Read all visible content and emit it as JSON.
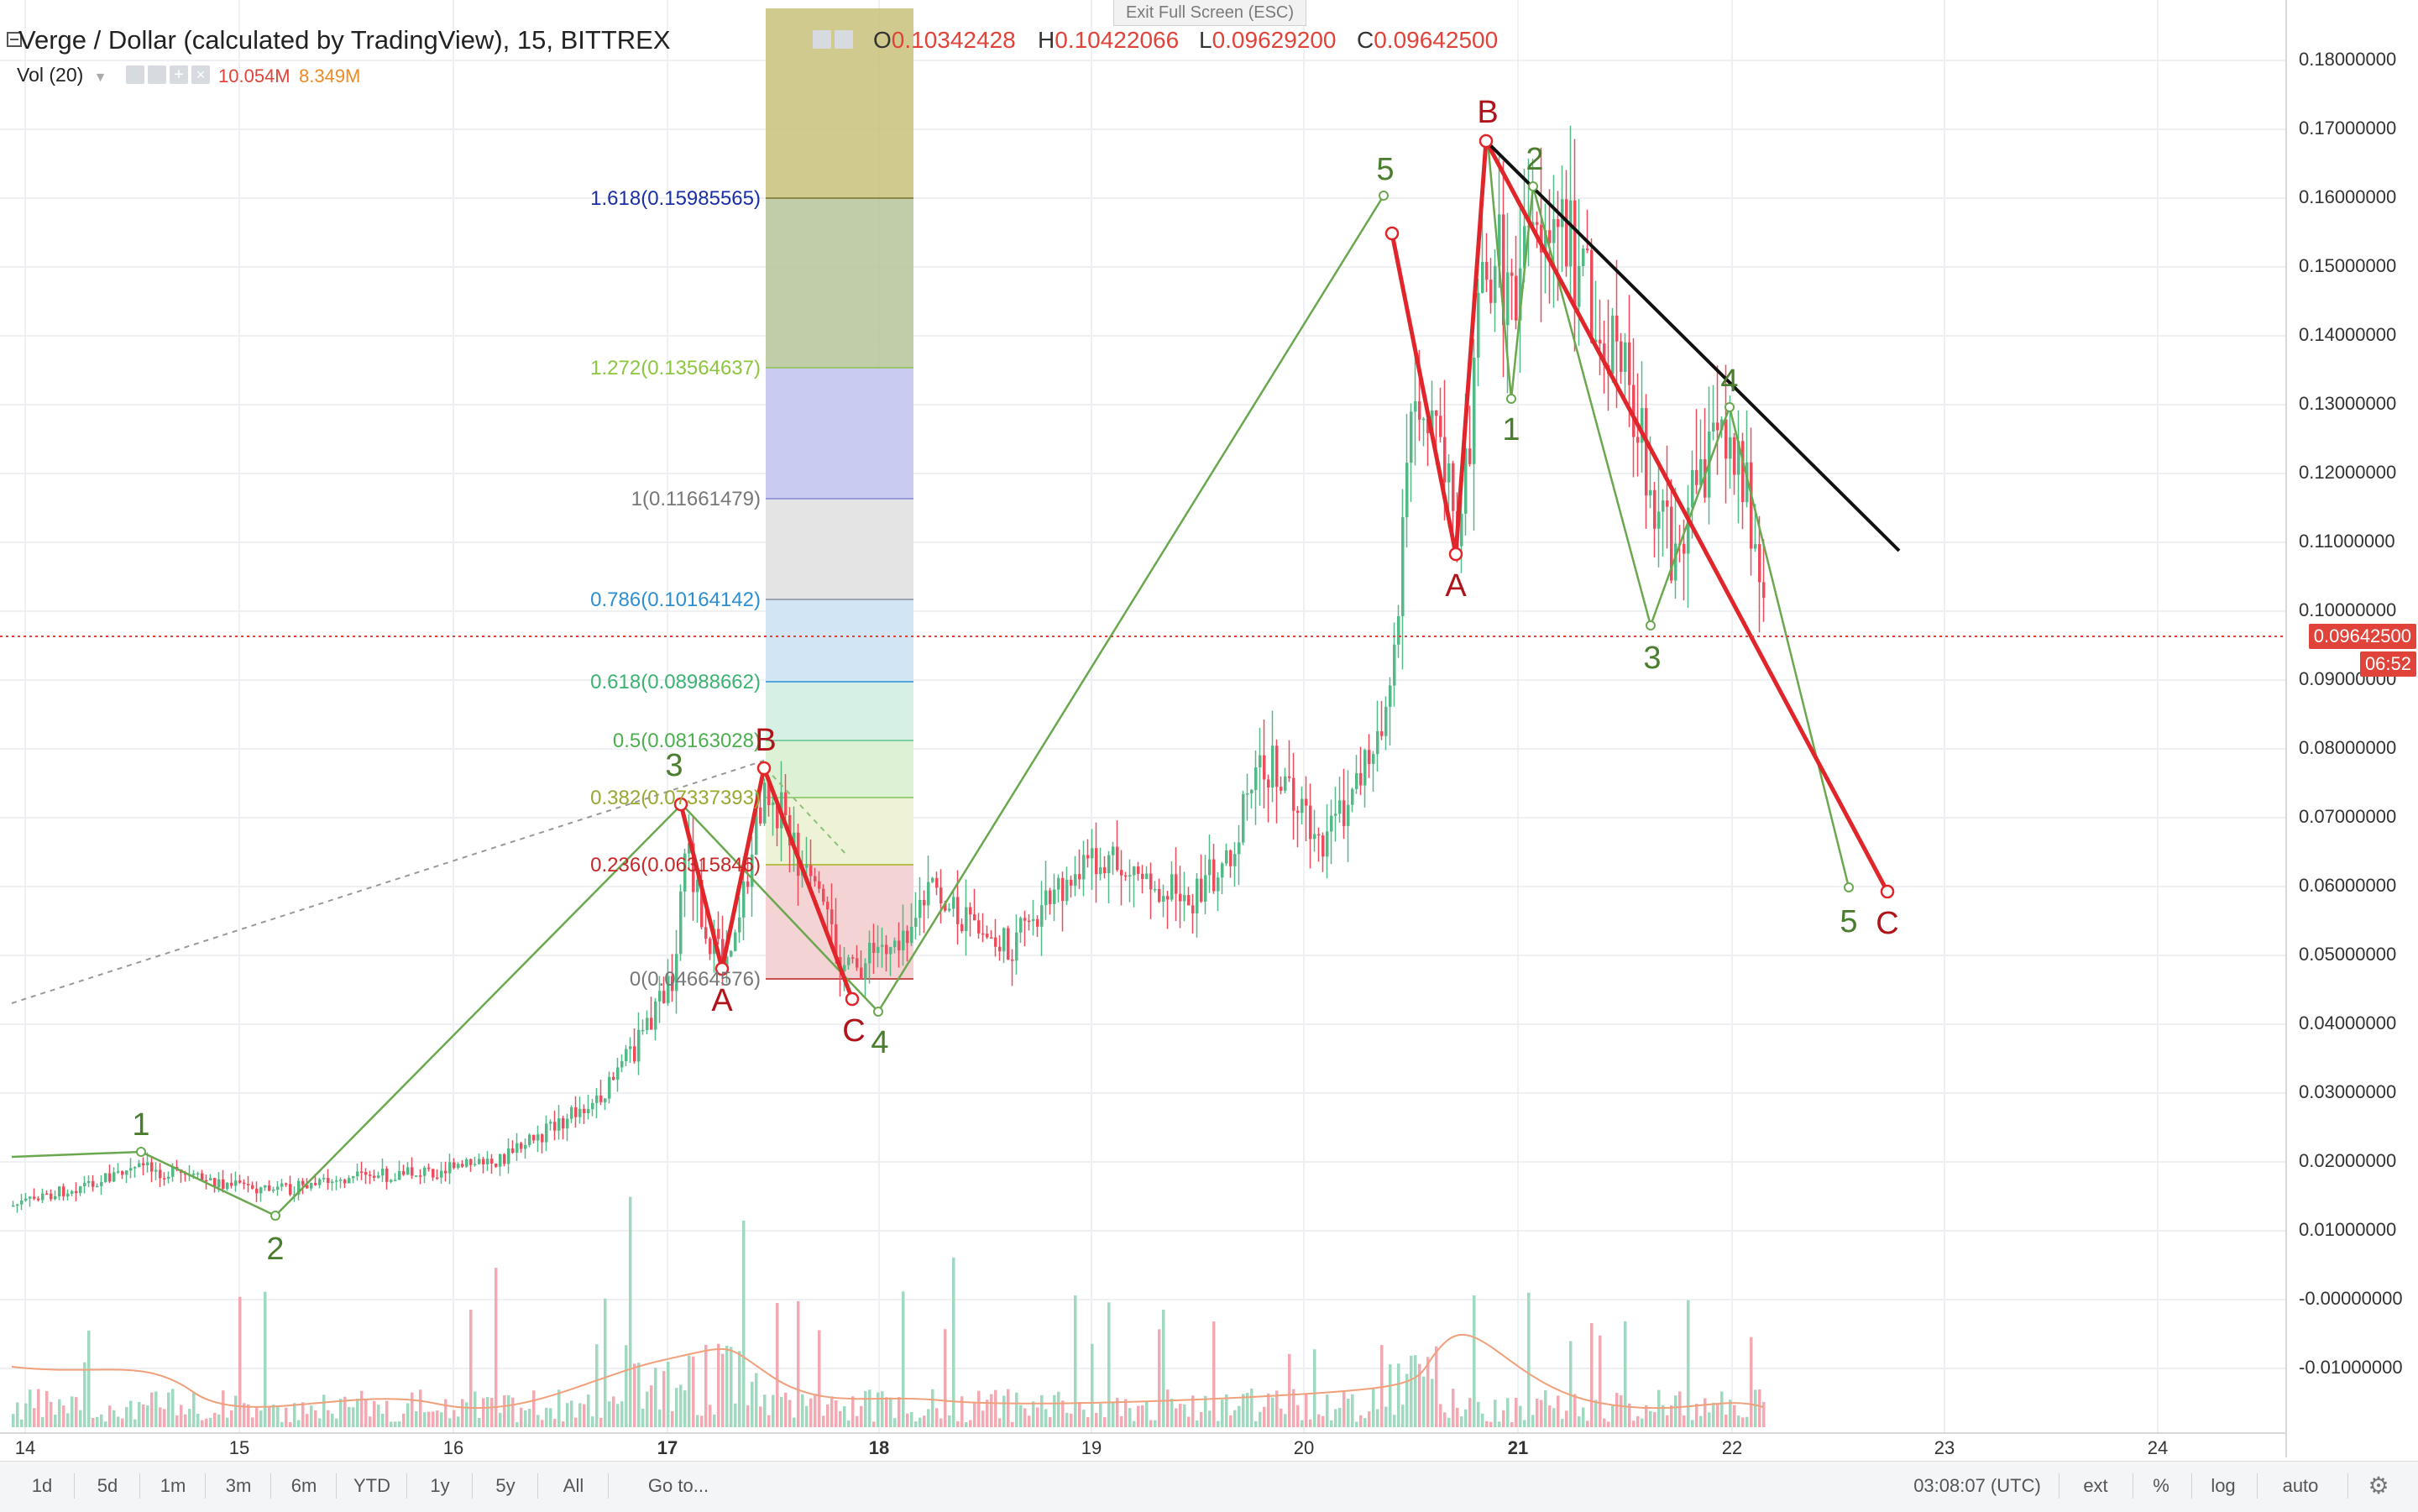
{
  "header": {
    "title": "Verge / Dollar (calculated by TradingView), 15, BITTREX",
    "ohlc": [
      {
        "key": "O",
        "value": "0.10342428"
      },
      {
        "key": "H",
        "value": "0.10422066"
      },
      {
        "key": "L",
        "value": "0.09629200"
      },
      {
        "key": "C",
        "value": "0.09642500"
      }
    ],
    "volume_label": "Vol (20)",
    "volume_values": [
      "10.054M",
      "8.349M"
    ]
  },
  "exit_fullscreen_label": "Exit Full Screen (ESC)",
  "price_axis": {
    "labels": [
      "0.18000000",
      "0.17000000",
      "0.16000000",
      "0.15000000",
      "0.14000000",
      "0.13000000",
      "0.12000000",
      "0.11000000",
      "0.10000000",
      "0.09000000",
      "0.08000000",
      "0.07000000",
      "0.06000000",
      "0.05000000",
      "0.04000000",
      "0.03000000",
      "0.02000000",
      "0.01000000",
      "-0.00000000",
      "-0.01000000"
    ],
    "current_price": "0.09642500",
    "countdown": "06:52"
  },
  "time_axis": {
    "labels": [
      "14",
      "15",
      "16",
      "17",
      "18",
      "19",
      "20",
      "21",
      "22",
      "23",
      "24"
    ]
  },
  "fib_levels": [
    {
      "ratio": "1.618",
      "price": "0.15985565",
      "label": "1.618(0.15985565)",
      "color": "#1a2fa6"
    },
    {
      "ratio": "1.272",
      "price": "0.13564637",
      "label": "1.272(0.13564637)",
      "color": "#8cc63f"
    },
    {
      "ratio": "1",
      "price": "0.11661479",
      "label": "1(0.11661479)",
      "color": "#777777"
    },
    {
      "ratio": "0.786",
      "price": "0.10164142",
      "label": "0.786(0.10164142)",
      "color": "#2d8fd1"
    },
    {
      "ratio": "0.618",
      "price": "0.08988662",
      "label": "0.618(0.08988662)",
      "color": "#3cb371"
    },
    {
      "ratio": "0.5",
      "price": "0.08163028",
      "label": "0.5(0.08163028)",
      "color": "#4caf50"
    },
    {
      "ratio": "0.382",
      "price": "0.07337393",
      "label": "0.382(0.07337393)",
      "color": "#9aa833"
    },
    {
      "ratio": "0.236",
      "price": "0.06315846",
      "label": "0.236(0.06315846)",
      "color": "#c62828"
    },
    {
      "ratio": "0",
      "price": "0.04664576",
      "label": "0(0.04664576)",
      "color": "#777777"
    }
  ],
  "wave_labels": {
    "green": [
      "1",
      "2",
      "3",
      "4",
      "5",
      "1",
      "2",
      "3",
      "4",
      "5"
    ],
    "red": [
      "A",
      "B",
      "C",
      "A",
      "B",
      "C"
    ]
  },
  "toolbar": {
    "ranges": [
      "1d",
      "5d",
      "1m",
      "3m",
      "6m",
      "YTD",
      "1y",
      "5y",
      "All"
    ],
    "goto": "Go to...",
    "clock": "03:08:07 (UTC)",
    "ext": "ext",
    "percent": "%",
    "log": "log",
    "auto": "auto"
  },
  "colors": {
    "up": "#53b987",
    "down": "#eb4d5c",
    "wave_green": "#5a9e3a",
    "wave_red": "#e0262a",
    "price_tag": "#e0433a"
  },
  "icons": [
    "collapse-icon",
    "eye-icon",
    "settings-icon",
    "plus-icon",
    "close-icon",
    "dropdown-icon",
    "gear-icon"
  ]
}
